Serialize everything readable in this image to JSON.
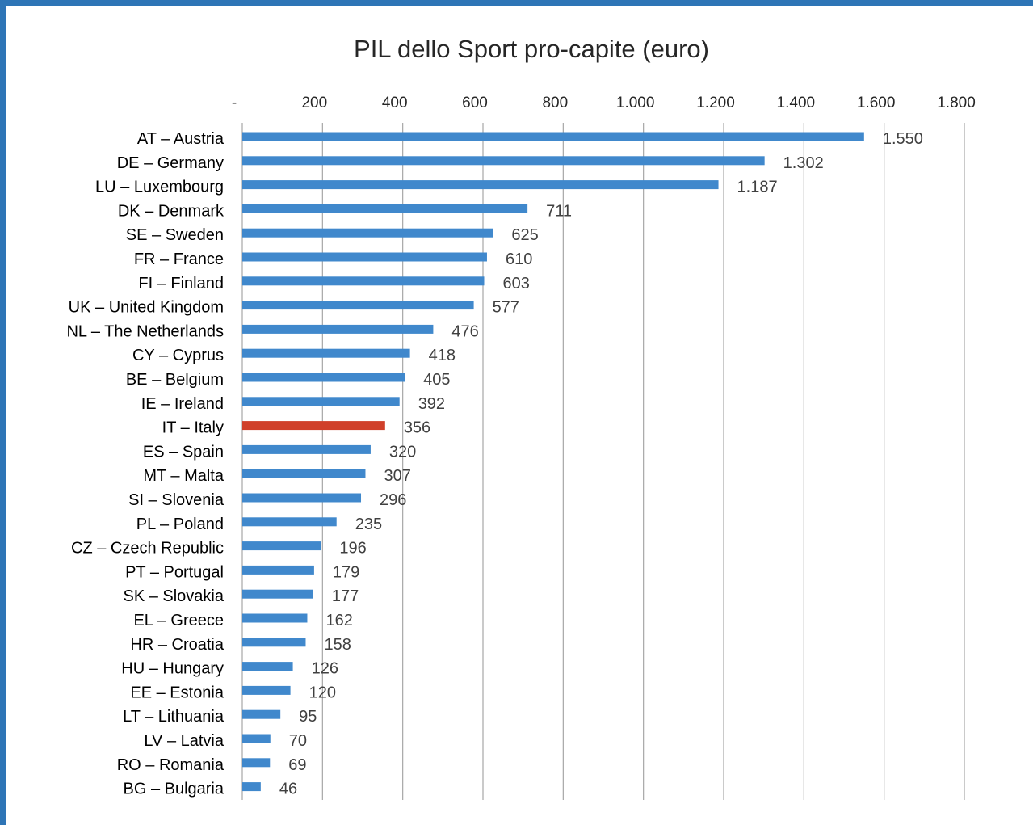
{
  "chart_data": {
    "type": "bar",
    "orientation": "horizontal",
    "title": "PIL dello Sport pro-capite (euro)",
    "xlabel": "",
    "ylabel": "",
    "xlim": [
      0,
      1800
    ],
    "x_ticks": [
      0,
      200,
      400,
      600,
      800,
      1000,
      1200,
      1400,
      1600,
      1800
    ],
    "x_tick_labels": [
      "-",
      "200",
      "400",
      "600",
      "800",
      "1.000",
      "1.200",
      "1.400",
      "1.600",
      "1.800"
    ],
    "axis_position": "top",
    "grid": true,
    "categories": [
      "AT – Austria",
      "DE – Germany",
      "LU – Luxembourg",
      "DK – Denmark",
      "SE – Sweden",
      "FR – France",
      "FI – Finland",
      "UK – United Kingdom",
      "NL – The Netherlands",
      "CY – Cyprus",
      "BE – Belgium",
      "IE – Ireland",
      "IT – Italy",
      "ES – Spain",
      "MT – Malta",
      "SI – Slovenia",
      "PL – Poland",
      "CZ – Czech Republic",
      "PT – Portugal",
      "SK – Slovakia",
      "EL – Greece",
      "HR – Croatia",
      "HU – Hungary",
      "EE – Estonia",
      "LT – Lithuania",
      "LV – Latvia",
      "RO – Romania",
      "BG – Bulgaria"
    ],
    "values": [
      1550,
      1302,
      1187,
      711,
      625,
      610,
      603,
      577,
      476,
      418,
      405,
      392,
      356,
      320,
      307,
      296,
      235,
      196,
      179,
      177,
      162,
      158,
      126,
      120,
      95,
      70,
      69,
      46
    ],
    "value_labels": [
      "1.550",
      "1.302",
      "1.187",
      "711",
      "625",
      "610",
      "603",
      "577",
      "476",
      "418",
      "405",
      "392",
      "356",
      "320",
      "307",
      "296",
      "235",
      "196",
      "179",
      "177",
      "162",
      "158",
      "126",
      "120",
      "95",
      "70",
      "69",
      "46"
    ],
    "highlight_category": "IT – Italy",
    "colors": {
      "bar": "#4088cc",
      "highlight": "#d0402a",
      "grid": "#a6a6a6",
      "frame": "#2e75b6"
    }
  }
}
